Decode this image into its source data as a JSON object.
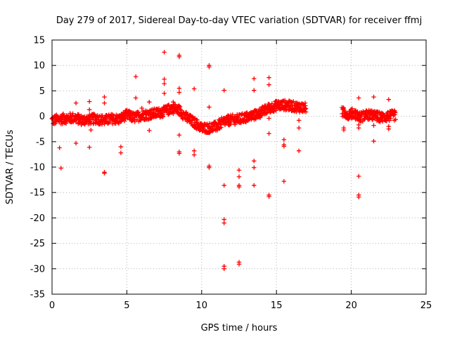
{
  "chart_data": {
    "type": "scatter",
    "title": "Day 279 of 2017, Sidereal Day-to-day VTEC variation (SDTVAR) for receiver ffmj",
    "xlabel": "GPS time / hours",
    "ylabel": "SDTVAR / TECUs",
    "xlim": [
      0,
      25
    ],
    "ylim": [
      -35,
      15
    ],
    "xticks": [
      0,
      5,
      10,
      15,
      20,
      25
    ],
    "yticks": [
      15,
      10,
      5,
      0,
      -5,
      -10,
      -15,
      -20,
      -25,
      -30,
      -35
    ],
    "xtick_labels": [
      "0",
      "5",
      "10",
      "15",
      "20",
      "25"
    ],
    "ytick_labels": [
      "15",
      "10",
      "5",
      "0",
      "-5",
      "-10",
      "-15",
      "-20",
      "-25",
      "-30",
      "-35"
    ],
    "grid": true,
    "marker": "+",
    "color": "#ff0000",
    "band_anchors": [
      [
        0.0,
        -0.8
      ],
      [
        0.5,
        -0.6
      ],
      [
        1.0,
        -0.4
      ],
      [
        1.5,
        -0.3
      ],
      [
        2.0,
        -0.8
      ],
      [
        2.5,
        -0.6
      ],
      [
        3.0,
        -0.5
      ],
      [
        3.5,
        -0.8
      ],
      [
        4.0,
        -0.5
      ],
      [
        4.5,
        -0.6
      ],
      [
        5.0,
        0.3
      ],
      [
        5.5,
        -0.3
      ],
      [
        6.0,
        0.2
      ],
      [
        6.5,
        0.4
      ],
      [
        7.0,
        0.6
      ],
      [
        7.5,
        0.9
      ],
      [
        8.0,
        1.6
      ],
      [
        8.5,
        1.2
      ],
      [
        9.0,
        -0.3
      ],
      [
        9.5,
        -1.2
      ],
      [
        10.0,
        -2.3
      ],
      [
        10.5,
        -2.3
      ],
      [
        11.0,
        -2.0
      ],
      [
        11.5,
        -1.0
      ],
      [
        12.0,
        -0.7
      ],
      [
        12.5,
        -0.6
      ],
      [
        13.0,
        -0.2
      ],
      [
        13.5,
        0.2
      ],
      [
        14.0,
        0.8
      ],
      [
        14.5,
        1.6
      ],
      [
        15.0,
        2.1
      ],
      [
        15.5,
        2.2
      ],
      [
        16.0,
        2.0
      ],
      [
        16.5,
        1.8
      ],
      [
        17.0,
        1.6
      ]
    ],
    "band2_anchors": [
      [
        19.4,
        0.8
      ],
      [
        19.8,
        0.4
      ],
      [
        20.2,
        0.6
      ],
      [
        20.6,
        -0.2
      ],
      [
        21.0,
        0.3
      ],
      [
        21.5,
        0.1
      ],
      [
        22.0,
        -0.2
      ],
      [
        22.5,
        0.0
      ],
      [
        23.0,
        0.2
      ]
    ],
    "points": [
      [
        0.5,
        -6.2
      ],
      [
        0.6,
        -10.2
      ],
      [
        1.6,
        -5.3
      ],
      [
        1.6,
        2.6
      ],
      [
        2.5,
        -6.1
      ],
      [
        2.5,
        2.9
      ],
      [
        2.5,
        1.3
      ],
      [
        2.6,
        -2.7
      ],
      [
        3.5,
        3.8
      ],
      [
        3.5,
        2.6
      ],
      [
        3.5,
        -11.0
      ],
      [
        3.5,
        -11.2
      ],
      [
        4.6,
        -6.0
      ],
      [
        4.6,
        -7.2
      ],
      [
        5.6,
        7.8
      ],
      [
        5.6,
        3.6
      ],
      [
        6.0,
        1.6
      ],
      [
        6.5,
        2.8
      ],
      [
        6.5,
        -2.8
      ],
      [
        7.5,
        12.6
      ],
      [
        7.5,
        7.3
      ],
      [
        7.5,
        6.4
      ],
      [
        7.5,
        4.5
      ],
      [
        8.1,
        2.8
      ],
      [
        8.5,
        12.0
      ],
      [
        8.5,
        11.7
      ],
      [
        8.5,
        5.5
      ],
      [
        8.5,
        4.7
      ],
      [
        8.5,
        -3.7
      ],
      [
        8.5,
        -7.0
      ],
      [
        8.5,
        -7.3
      ],
      [
        9.5,
        5.4
      ],
      [
        9.5,
        -6.8
      ],
      [
        9.5,
        -7.6
      ],
      [
        10.5,
        10.0
      ],
      [
        10.5,
        9.7
      ],
      [
        10.5,
        1.8
      ],
      [
        10.5,
        -9.8
      ],
      [
        10.5,
        -10.1
      ],
      [
        11.5,
        5.1
      ],
      [
        11.5,
        -13.6
      ],
      [
        11.5,
        -20.3
      ],
      [
        11.5,
        -21.0
      ],
      [
        11.5,
        -29.5
      ],
      [
        11.5,
        -30.0
      ],
      [
        12.5,
        -10.6
      ],
      [
        12.5,
        -11.9
      ],
      [
        12.5,
        -13.6
      ],
      [
        12.5,
        -13.9
      ],
      [
        12.5,
        -28.7
      ],
      [
        12.5,
        -29.1
      ],
      [
        13.5,
        7.4
      ],
      [
        13.5,
        5.1
      ],
      [
        13.5,
        -8.8
      ],
      [
        13.5,
        -10.1
      ],
      [
        13.5,
        -13.6
      ],
      [
        14.5,
        7.6
      ],
      [
        14.5,
        6.2
      ],
      [
        14.5,
        -0.4
      ],
      [
        14.5,
        -3.4
      ],
      [
        14.5,
        -15.5
      ],
      [
        14.5,
        -15.8
      ],
      [
        15.5,
        -4.6
      ],
      [
        15.5,
        -5.6
      ],
      [
        15.5,
        -5.9
      ],
      [
        15.5,
        -12.8
      ],
      [
        16.5,
        -0.8
      ],
      [
        16.5,
        -2.3
      ],
      [
        16.5,
        -6.8
      ],
      [
        19.5,
        1.6
      ],
      [
        19.5,
        -2.3
      ],
      [
        19.5,
        -2.7
      ],
      [
        20.5,
        3.6
      ],
      [
        20.5,
        -1.7
      ],
      [
        20.5,
        -2.3
      ],
      [
        20.5,
        -11.8
      ],
      [
        20.5,
        -15.5
      ],
      [
        20.5,
        -15.9
      ],
      [
        21.5,
        3.8
      ],
      [
        21.5,
        -1.8
      ],
      [
        21.5,
        -4.9
      ],
      [
        22.5,
        3.3
      ],
      [
        22.5,
        -2.0
      ],
      [
        22.5,
        -2.5
      ]
    ]
  }
}
